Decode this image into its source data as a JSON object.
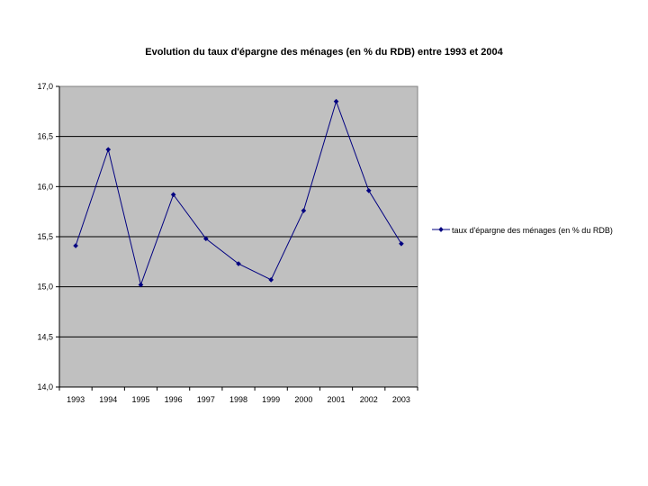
{
  "chart_data": {
    "type": "line",
    "title": "Evolution du taux d'épargne des ménages (en % du RDB) entre 1993 et 2004",
    "xlabel": "",
    "ylabel": "",
    "categories": [
      "1993",
      "1994",
      "1995",
      "1996",
      "1997",
      "1998",
      "1999",
      "2000",
      "2001",
      "2002",
      "2003"
    ],
    "series": [
      {
        "name": "taux d'épargne des ménages (en % du RDB)",
        "values": [
          15.41,
          16.37,
          15.02,
          15.92,
          15.48,
          15.23,
          15.07,
          15.76,
          16.85,
          15.96,
          15.43
        ],
        "color": "#000080"
      }
    ],
    "ylim": [
      14.0,
      17.0
    ],
    "y_ticks": [
      "14,0",
      "14,5",
      "15,0",
      "15,5",
      "16,0",
      "16,5",
      "17,0"
    ],
    "grid": true,
    "legend_position": "right",
    "plot_background": "#c0c0c0"
  }
}
